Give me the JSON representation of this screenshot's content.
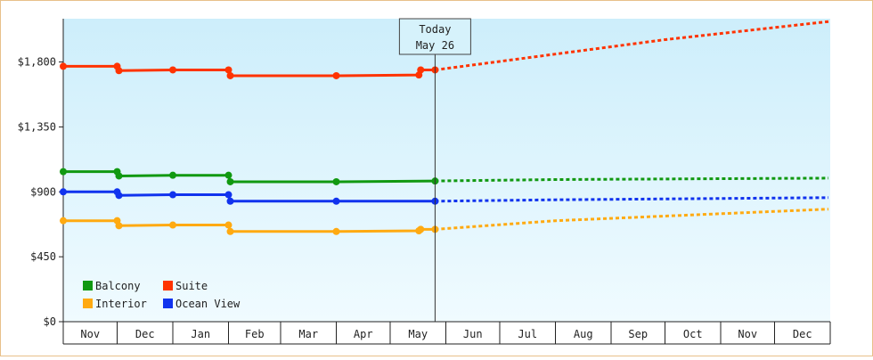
{
  "chart_data": {
    "type": "line",
    "y_ticks": [
      "$0",
      "$450",
      "$900",
      "$1,350",
      "$1,800"
    ],
    "y_tick_values": [
      0,
      450,
      900,
      1350,
      1800
    ],
    "ylim": [
      0,
      2100
    ],
    "x_months": [
      "Nov",
      "Dec",
      "Jan",
      "Feb",
      "Mar",
      "Apr",
      "May",
      "Jun",
      "Jul",
      "Aug",
      "Sep",
      "Oct",
      "Nov",
      "Dec"
    ],
    "today": {
      "line1": "Today",
      "line2": "May 26",
      "date": "2024-05-26"
    },
    "grid": false,
    "legend_position": "bottom-left",
    "series": [
      {
        "name": "Balcony",
        "color": "#119911",
        "actual": [
          [
            "2023-11-01",
            1040
          ],
          [
            "2023-12-01",
            1040
          ],
          [
            "2023-12-02",
            1010
          ],
          [
            "2024-01-01",
            1015
          ],
          [
            "2024-02-01",
            1015
          ],
          [
            "2024-02-02",
            970
          ],
          [
            "2024-04-01",
            970
          ],
          [
            "2024-05-26",
            975
          ]
        ],
        "forecast": [
          [
            "2024-05-26",
            975
          ],
          [
            "2024-08-01",
            985
          ],
          [
            "2024-12-31",
            995
          ]
        ]
      },
      {
        "name": "Suite",
        "color": "#ff3300",
        "actual": [
          [
            "2023-11-01",
            1770
          ],
          [
            "2023-12-01",
            1770
          ],
          [
            "2023-12-02",
            1740
          ],
          [
            "2024-01-01",
            1745
          ],
          [
            "2024-02-01",
            1745
          ],
          [
            "2024-02-02",
            1705
          ],
          [
            "2024-04-01",
            1705
          ],
          [
            "2024-05-17",
            1710
          ],
          [
            "2024-05-18",
            1745
          ],
          [
            "2024-05-26",
            1745
          ]
        ],
        "forecast": [
          [
            "2024-05-26",
            1745
          ],
          [
            "2024-08-01",
            1855
          ],
          [
            "2024-10-01",
            1955
          ],
          [
            "2024-12-31",
            2080
          ]
        ]
      },
      {
        "name": "Interior",
        "color": "#ffaa11",
        "actual": [
          [
            "2023-11-01",
            700
          ],
          [
            "2023-12-01",
            700
          ],
          [
            "2023-12-02",
            665
          ],
          [
            "2024-01-01",
            670
          ],
          [
            "2024-02-01",
            670
          ],
          [
            "2024-02-02",
            625
          ],
          [
            "2024-04-01",
            625
          ],
          [
            "2024-05-17",
            630
          ],
          [
            "2024-05-18",
            640
          ],
          [
            "2024-05-26",
            640
          ]
        ],
        "forecast": [
          [
            "2024-05-26",
            640
          ],
          [
            "2024-08-01",
            700
          ],
          [
            "2024-12-31",
            780
          ]
        ]
      },
      {
        "name": "Ocean View",
        "color": "#1133ee",
        "actual": [
          [
            "2023-11-01",
            900
          ],
          [
            "2023-12-01",
            900
          ],
          [
            "2023-12-02",
            875
          ],
          [
            "2024-01-01",
            880
          ],
          [
            "2024-02-01",
            880
          ],
          [
            "2024-02-02",
            835
          ],
          [
            "2024-04-01",
            835
          ],
          [
            "2024-05-26",
            835
          ]
        ],
        "forecast": [
          [
            "2024-05-26",
            835
          ],
          [
            "2024-08-01",
            845
          ],
          [
            "2024-12-31",
            860
          ]
        ]
      }
    ]
  }
}
